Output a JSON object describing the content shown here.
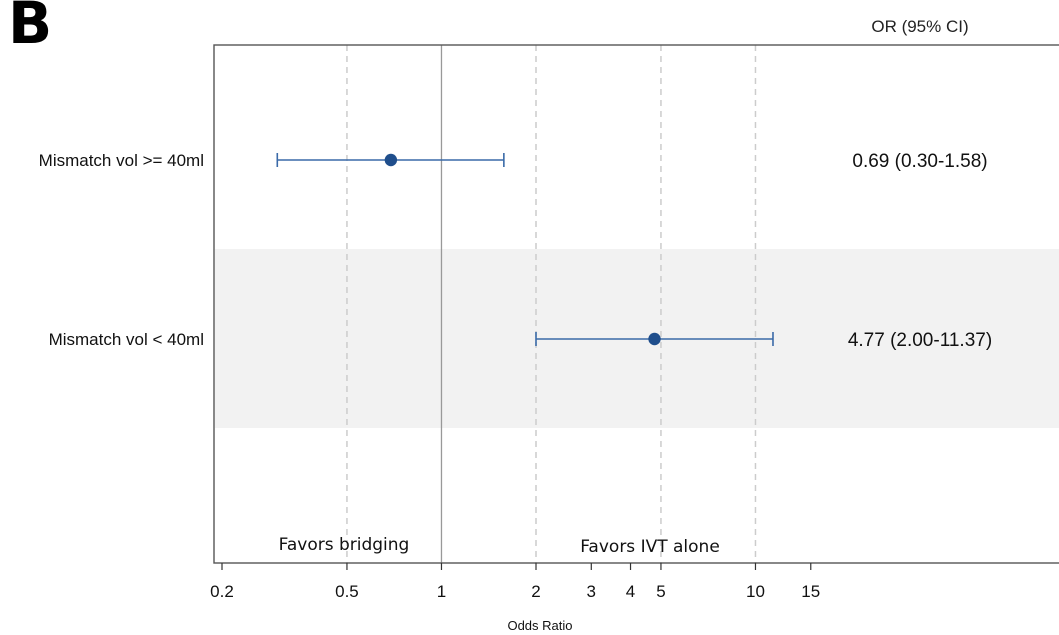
{
  "panel_label": "B",
  "chart_data": {
    "type": "forest",
    "column_header": "OR (95% CI)",
    "xlabel": "Odds Ratio",
    "x_scale": "log",
    "xlim": [
      0.2,
      32
    ],
    "xticks": [
      {
        "value": 0.2,
        "label": "0.2"
      },
      {
        "value": 0.5,
        "label": "0.5"
      },
      {
        "value": 1,
        "label": "1"
      },
      {
        "value": 2,
        "label": "2"
      },
      {
        "value": 3,
        "label": "3"
      },
      {
        "value": 4,
        "label": "4"
      },
      {
        "value": 5,
        "label": "5"
      },
      {
        "value": 10,
        "label": "10"
      },
      {
        "value": 15,
        "label": "15"
      }
    ],
    "reference_line": 1,
    "dashed_gridlines": [
      0.5,
      2,
      5,
      10
    ],
    "favor_labels": {
      "left": "Favors bridging",
      "right": "Favors IVT alone"
    },
    "rows": [
      {
        "label": "Mismatch vol >= 40ml",
        "or": 0.69,
        "ci_low": 0.3,
        "ci_high": 1.58,
        "text": "0.69 (0.30-1.58)",
        "shaded": false
      },
      {
        "label": "Mismatch vol < 40ml",
        "or": 4.77,
        "ci_low": 2.0,
        "ci_high": 11.37,
        "text": "4.77 (2.00-11.37)",
        "shaded": true
      }
    ],
    "colors": {
      "marker": "#1f4e8c",
      "ci_line": "#3a6aa8",
      "shade": "#f2f2f2",
      "frame": "#555555",
      "ref_line": "#999999",
      "grid": "#cccccc"
    }
  }
}
